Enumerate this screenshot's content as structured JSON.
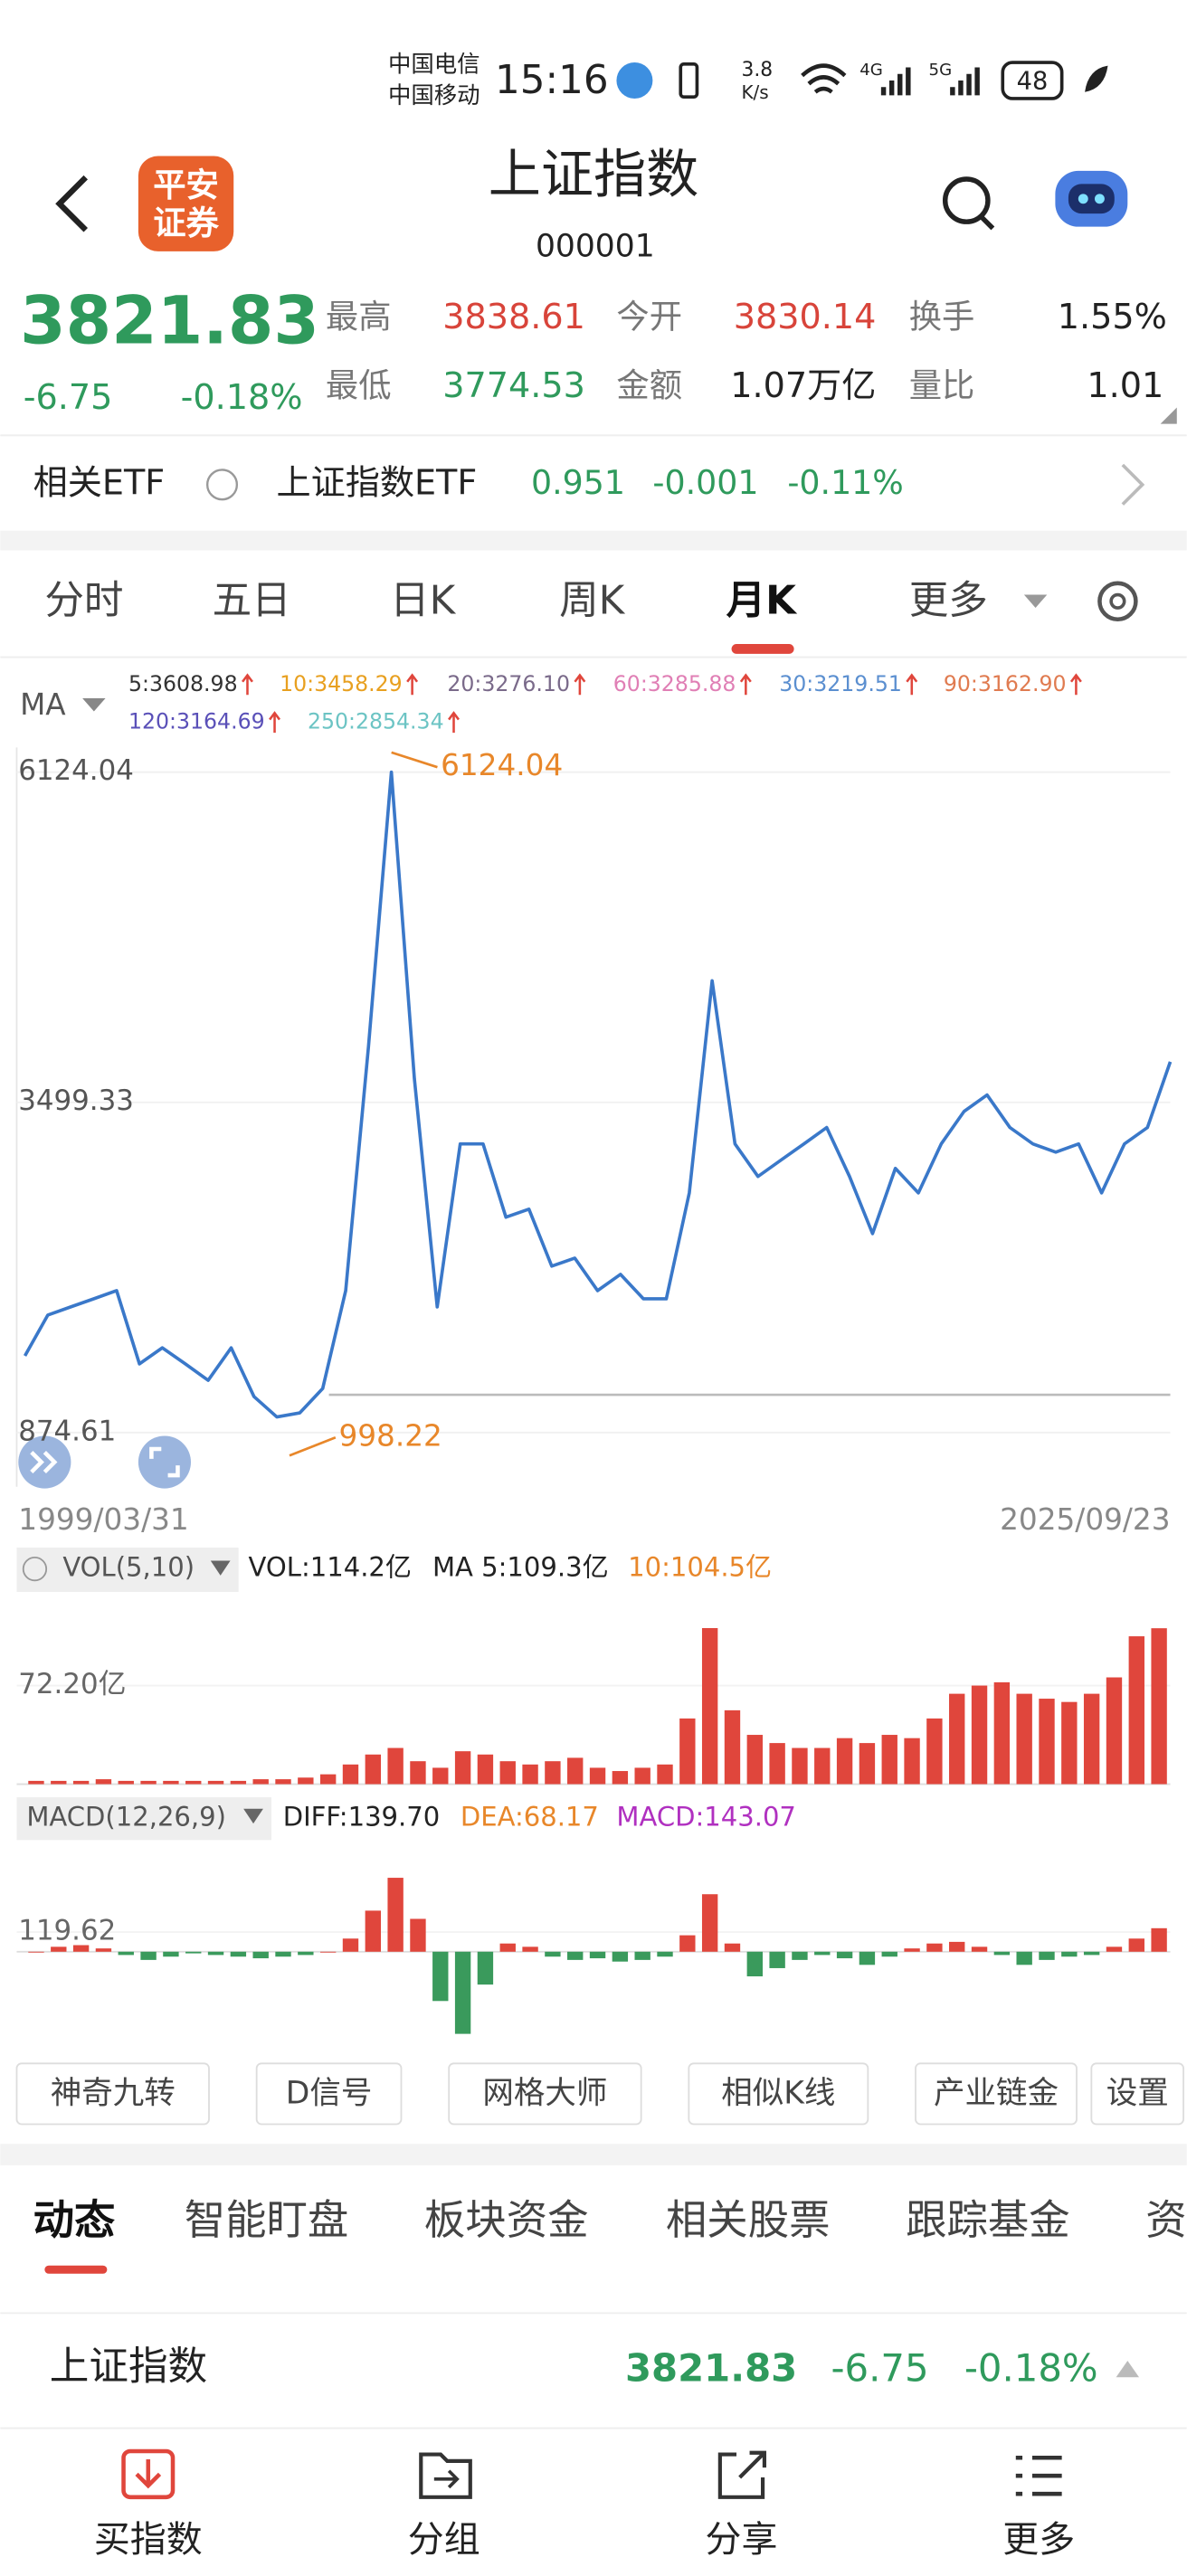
{
  "status": {
    "carrier1": "中国电信",
    "carrier2": "中国移动",
    "time": "15:16",
    "speed": "3.8",
    "speed_unit": "K/s",
    "net1": "4G",
    "net2": "5G",
    "battery": "48"
  },
  "header": {
    "logo": [
      "平安",
      "证券"
    ],
    "title": "上证指数",
    "code": "000001"
  },
  "quote": {
    "price": "3821.83",
    "change": "-6.75",
    "pct": "-0.18%",
    "fields": [
      {
        "label": "最高",
        "value": "3838.61"
      },
      {
        "label": "最低",
        "value": "3774.53"
      },
      {
        "label": "今开",
        "value": "3830.14"
      },
      {
        "label": "金额",
        "value": "1.07万亿"
      },
      {
        "label": "换手",
        "value": "1.55%"
      },
      {
        "label": "量比",
        "value": "1.01"
      }
    ]
  },
  "etf": {
    "label": "相关ETF",
    "name": "上证指数ETF",
    "price": "0.951",
    "change": "-0.001",
    "pct": "-0.11%"
  },
  "tabs": [
    "分时",
    "五日",
    "日K",
    "周K",
    "月K",
    "更多"
  ],
  "ma_legend": {
    "label": "MA",
    "items": [
      {
        "text": "5:3608.98",
        "color": "#333333"
      },
      {
        "text": "10:3458.29",
        "color": "#e8a020"
      },
      {
        "text": "20:3276.10",
        "color": "#7a6a8a"
      },
      {
        "text": "60:3285.88",
        "color": "#e07fb5"
      },
      {
        "text": "30:3219.51",
        "color": "#5b8fd0"
      },
      {
        "text": "90:3162.90",
        "color": "#e07b50"
      },
      {
        "text": "120:3164.69",
        "color": "#5a50b8"
      },
      {
        "text": "250:2854.34",
        "color": "#6cc4c4"
      }
    ]
  },
  "price_chart": {
    "type": "line",
    "color": "#3a78c9",
    "ylim": [
      874.61,
      6124.04
    ],
    "yticks": [
      6124.04,
      3499.33,
      874.61
    ],
    "max_label": 6124.04,
    "min_label": 998.22,
    "start_label": "1999/03/31",
    "end_label": "2025/09/23",
    "values": [
      1484,
      1808,
      1873,
      1938,
      2003,
      1420,
      1549,
      1420,
      1290,
      1549,
      1160,
      998.22,
      1031,
      1225,
      2003,
      3947,
      6124.04,
      3688,
      1873,
      3169,
      3169,
      2586,
      2651,
      2197,
      2262,
      2003,
      2132,
      1938,
      1938,
      2780,
      4465,
      3169,
      2910,
      3040,
      3169,
      3299,
      2910,
      2456,
      2975,
      2780,
      3169,
      3428,
      3558,
      3299,
      3169,
      3104,
      3169,
      2780,
      3169,
      3299,
      3821.83
    ]
  },
  "vol_chart": {
    "type": "bar",
    "color": "#e0463c",
    "ylim": [
      0,
      142
    ],
    "yticks": [
      {
        "value": 72.2,
        "label": "72.20亿"
      }
    ],
    "header": {
      "name": "VOL(5,10)",
      "vol": "VOL:114.2亿",
      "ma5": "MA 5:109.3亿",
      "ma10": "10:104.5亿"
    },
    "values": [
      2.4,
      2.4,
      2.4,
      3.6,
      2.4,
      2.4,
      2.4,
      2.4,
      2.4,
      2.4,
      3.6,
      3.6,
      4.8,
      7.2,
      14.4,
      21.7,
      26.5,
      16.8,
      12.0,
      24.1,
      21.7,
      16.8,
      14.4,
      16.8,
      19.3,
      12.0,
      9.6,
      12.0,
      14.4,
      48.1,
      114.3,
      54.1,
      36.1,
      30.1,
      26.5,
      26.5,
      33.7,
      30.1,
      36.1,
      33.7,
      48.1,
      66.2,
      72.2,
      74.6,
      66.2,
      62.6,
      60.2,
      66.2,
      78.2,
      108.3,
      114.2
    ]
  },
  "macd_chart": {
    "type": "bar",
    "up_color": "#e0463c",
    "down_color": "#3a9a5c",
    "ylim": [
      -520,
      680
    ],
    "yticks": [
      119.62
    ],
    "header": {
      "name": "MACD(12,26,9)",
      "diff": "DIFF:139.70",
      "dea": "DEA:68.17",
      "macd": "MACD:143.07"
    },
    "values": [
      0,
      30,
      40,
      20,
      -20,
      -50,
      -30,
      -10,
      -20,
      -30,
      -40,
      -30,
      -20,
      0,
      80,
      250,
      450,
      200,
      -300,
      -500,
      -200,
      50,
      30,
      -30,
      -50,
      -40,
      -60,
      -50,
      -30,
      100,
      350,
      50,
      -150,
      -100,
      -50,
      -20,
      -40,
      -80,
      -30,
      20,
      50,
      60,
      30,
      -20,
      -80,
      -50,
      -30,
      -20,
      30,
      80,
      143.07
    ]
  },
  "tools": [
    "神奇九转",
    "D信号",
    "网格大师",
    "相似K线",
    "产业链金",
    "设置"
  ],
  "sections": [
    "动态",
    "智能盯盘",
    "板块资金",
    "相关股票",
    "跟踪基金",
    "资"
  ],
  "summary": {
    "name": "上证指数",
    "price": "3821.83",
    "change": "-6.75",
    "pct": "-0.18%"
  },
  "nav": [
    "买指数",
    "分组",
    "分享",
    "更多"
  ]
}
